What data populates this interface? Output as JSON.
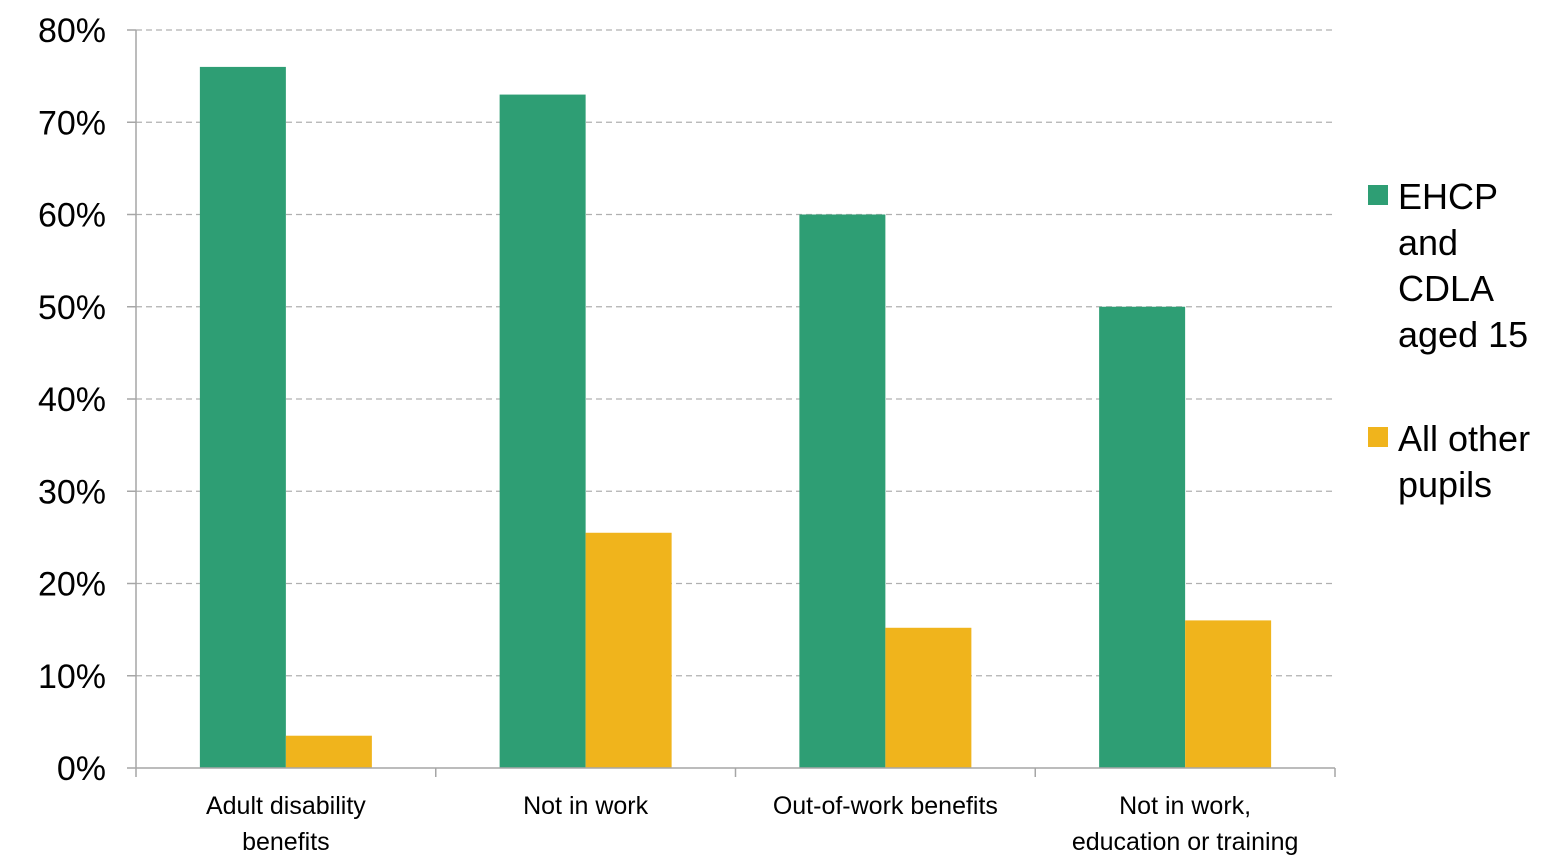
{
  "chart_data": {
    "type": "bar",
    "categories": [
      [
        "Adult disability",
        "benefits"
      ],
      [
        "Not in work"
      ],
      [
        "Out-of-work benefits"
      ],
      [
        "Not in work,",
        "education or training"
      ]
    ],
    "series": [
      {
        "name": [
          "EHCP",
          "and",
          "CDLA",
          "aged 15"
        ],
        "color": "#2e9e74",
        "values": [
          76,
          73,
          60,
          50
        ]
      },
      {
        "name": [
          "All other",
          "pupils"
        ],
        "color": "#f0b41c",
        "values": [
          3.5,
          25.5,
          15.2,
          16
        ]
      }
    ],
    "ylim": [
      0,
      80
    ],
    "yticks": [
      0,
      10,
      20,
      30,
      40,
      50,
      60,
      70,
      80
    ],
    "ytick_labels": [
      "0%",
      "10%",
      "20%",
      "30%",
      "40%",
      "50%",
      "60%",
      "70%",
      "80%"
    ],
    "grid": true,
    "legend_position": "right"
  }
}
